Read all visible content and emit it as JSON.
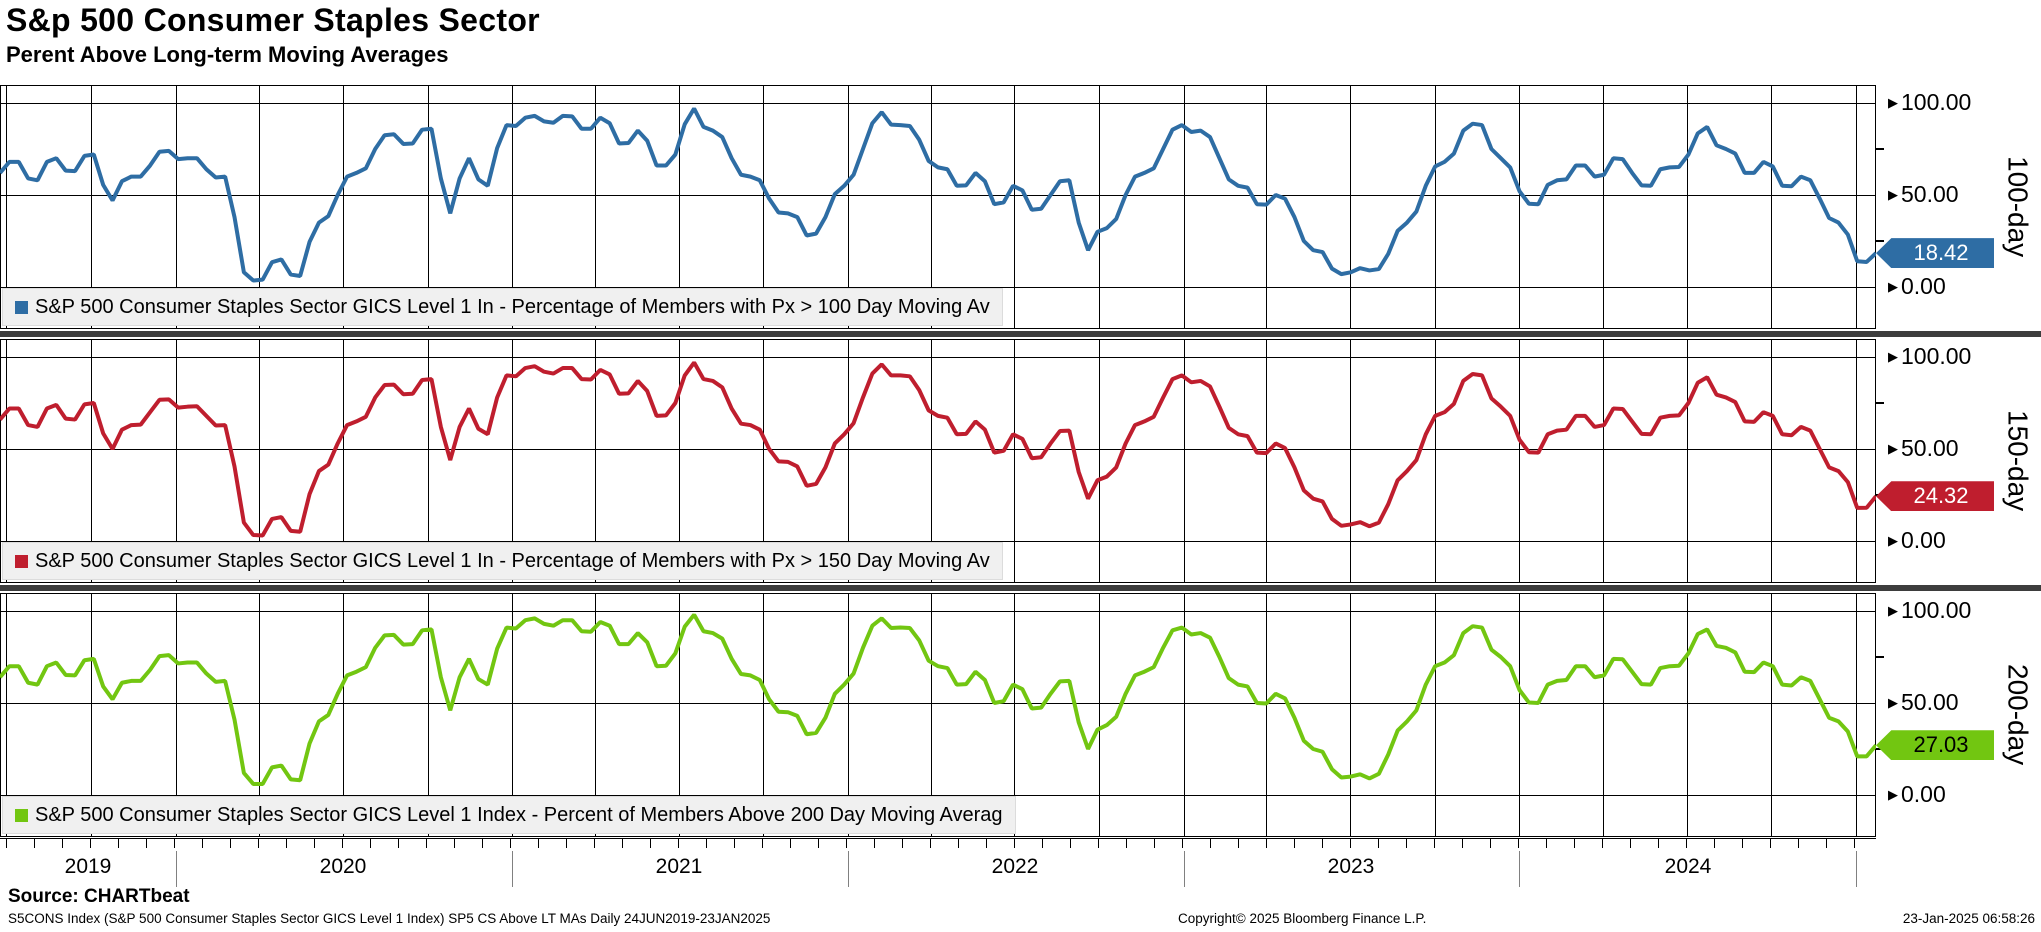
{
  "header": {
    "title": "S&p 500 Consumer Staples Sector",
    "subtitle": "Perent Above Long-term Moving Averages"
  },
  "chart_data": {
    "type": "line",
    "x_range": [
      "24JUN2019",
      "23JAN2025"
    ],
    "ylim": [
      0,
      100
    ],
    "grid": true,
    "legend_position": "bottom-left-per-panel",
    "y_ticks": [
      "100.00",
      "50.00",
      "0.00"
    ],
    "x_gridlines": [
      0.0034,
      0.0485,
      0.0936,
      0.1382,
      0.1828,
      0.2279,
      0.273,
      0.3171,
      0.3617,
      0.4068,
      0.452,
      0.4961,
      0.5407,
      0.5858,
      0.6309,
      0.675,
      0.7196,
      0.7647,
      0.8098,
      0.8544,
      0.899,
      0.9441,
      0.9892
    ],
    "x_year_boundaries": [
      0.0936,
      0.273,
      0.452,
      0.6309,
      0.8098,
      0.9892
    ],
    "x_year_labels": [
      {
        "label": "2019",
        "center": 0.047
      },
      {
        "label": "2020",
        "center": 0.183
      },
      {
        "label": "2021",
        "center": 0.362
      },
      {
        "label": "2022",
        "center": 0.541
      },
      {
        "label": "2023",
        "center": 0.72
      },
      {
        "label": "2024",
        "center": 0.9
      }
    ],
    "panels": [
      {
        "axis_label": "100-day",
        "legend": "S&P 500 Consumer Staples Sector GICS Level 1 In - Percentage of Members with Px > 100 Day Moving Av",
        "last_value": "18.42",
        "color": "#2e6da4",
        "tag_text_color": "#ffffff",
        "values": [
          62,
          68,
          58,
          70,
          63,
          72,
          47,
          60,
          66,
          74,
          70,
          64,
          60,
          8,
          4,
          15,
          6,
          35,
          50,
          62,
          75,
          83,
          78,
          86,
          40,
          70,
          55,
          88,
          92,
          90,
          93,
          86,
          92,
          78,
          85,
          66,
          72,
          97,
          85,
          70,
          60,
          48,
          40,
          28,
          38,
          55,
          75,
          95,
          88,
          80,
          65,
          55,
          62,
          45,
          55,
          42,
          50,
          58,
          20,
          32,
          50,
          62,
          75,
          88,
          85,
          70,
          55,
          45,
          50,
          38,
          20,
          10,
          8,
          9,
          18,
          35,
          55,
          68,
          85,
          88,
          70,
          52,
          45,
          58,
          66,
          60,
          70,
          62,
          55,
          65,
          72,
          87,
          75,
          62,
          68,
          55,
          60,
          48,
          35,
          14,
          18.42
        ]
      },
      {
        "axis_label": "150-day",
        "legend": "S&P 500 Consumer Staples Sector GICS Level 1 In - Percentage of Members with Px > 150 Day Moving Av",
        "last_value": "24.32",
        "color": "#bf1e2e",
        "tag_text_color": "#ffffff",
        "values": [
          66,
          72,
          62,
          74,
          66,
          75,
          50,
          63,
          70,
          77,
          73,
          68,
          63,
          10,
          3,
          13,
          5,
          38,
          53,
          65,
          78,
          85,
          80,
          88,
          44,
          72,
          58,
          90,
          94,
          92,
          94,
          88,
          93,
          80,
          87,
          68,
          75,
          97,
          87,
          72,
          63,
          50,
          43,
          30,
          40,
          58,
          78,
          96,
          90,
          82,
          68,
          58,
          65,
          48,
          58,
          45,
          53,
          60,
          23,
          35,
          53,
          65,
          78,
          90,
          87,
          73,
          58,
          48,
          53,
          40,
          23,
          12,
          9,
          8,
          20,
          38,
          58,
          70,
          87,
          90,
          73,
          55,
          48,
          60,
          68,
          62,
          72,
          65,
          58,
          68,
          75,
          89,
          78,
          65,
          70,
          58,
          62,
          50,
          38,
          18,
          24.32
        ]
      },
      {
        "axis_label": "200-day",
        "legend": "S&P 500 Consumer Staples Sector GICS Level 1 Index - Percent of Members Above 200 Day Moving Averag",
        "last_value": "27.03",
        "color": "#72c611",
        "tag_text_color": "#000000",
        "values": [
          64,
          70,
          60,
          72,
          65,
          74,
          52,
          62,
          68,
          76,
          72,
          66,
          62,
          12,
          6,
          16,
          8,
          40,
          55,
          67,
          80,
          87,
          82,
          90,
          46,
          74,
          60,
          91,
          95,
          93,
          95,
          89,
          94,
          82,
          88,
          70,
          77,
          98,
          88,
          74,
          65,
          52,
          45,
          33,
          42,
          60,
          80,
          96,
          91,
          84,
          70,
          60,
          67,
          50,
          60,
          47,
          55,
          62,
          25,
          38,
          55,
          67,
          80,
          91,
          88,
          75,
          60,
          50,
          55,
          42,
          25,
          14,
          10,
          9,
          22,
          40,
          60,
          72,
          88,
          91,
          75,
          57,
          50,
          62,
          70,
          64,
          74,
          67,
          60,
          70,
          77,
          90,
          80,
          67,
          72,
          60,
          64,
          52,
          40,
          21,
          27.03
        ]
      }
    ]
  },
  "footer": {
    "source_label": "Source: CHARTbeat",
    "ticker_line": "S5CONS Index (S&P 500 Consumer Staples Sector GICS Level 1 Index) SP5 CS Above LT MAs  Daily 24JUN2019-23JAN2025",
    "copyright": "Copyright© 2025 Bloomberg Finance L.P.",
    "timestamp": "23-Jan-2025 06:58:26"
  }
}
